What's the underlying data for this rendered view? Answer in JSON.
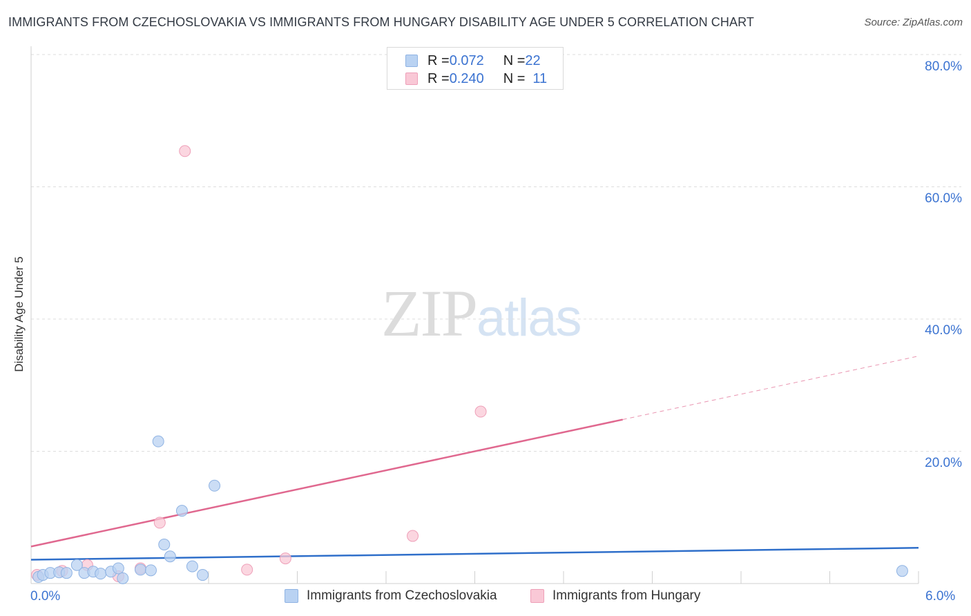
{
  "title": "IMMIGRANTS FROM CZECHOSLOVAKIA VS IMMIGRANTS FROM HUNGARY DISABILITY AGE UNDER 5 CORRELATION CHART",
  "source": "Source: ZipAtlas.com",
  "watermark": {
    "zip": "ZIP",
    "atlas": "atlas"
  },
  "legend": {
    "rows": [
      {
        "r_label": "R = ",
        "r_value": "0.072",
        "n_label": "N = ",
        "n_value": "22"
      },
      {
        "r_label": "R = ",
        "r_value": "0.240",
        "n_label": "N = ",
        "n_value": "11"
      }
    ]
  },
  "colors": {
    "blue_fill": "#b9d2f2",
    "blue_stroke": "#8fb3e3",
    "blue_line": "#2f6fca",
    "pink_fill": "#f9c8d6",
    "pink_stroke": "#ee9fb8",
    "pink_line": "#e0688f",
    "tick_text": "#3b73d1",
    "grid": "#dcdcdc"
  },
  "chart_data": {
    "type": "scatter",
    "title": "IMMIGRANTS FROM CZECHOSLOVAKIA VS IMMIGRANTS FROM HUNGARY DISABILITY AGE UNDER 5 CORRELATION CHART",
    "xlabel": "",
    "ylabel": "Disability Age Under 5",
    "xlim": [
      0,
      6
    ],
    "ylim": [
      0,
      80
    ],
    "x_ticks": [
      "0.0%",
      "6.0%"
    ],
    "y_ticks": [
      "20.0%",
      "40.0%",
      "60.0%",
      "80.0%"
    ],
    "grid": true,
    "legend_position": "top-center",
    "series": [
      {
        "name": "Immigrants from Czechoslovakia",
        "color": "#b9d2f2",
        "points": [
          [
            0.05,
            1.0
          ],
          [
            0.08,
            1.3
          ],
          [
            0.13,
            1.6
          ],
          [
            0.19,
            1.7
          ],
          [
            0.24,
            1.6
          ],
          [
            0.31,
            2.8
          ],
          [
            0.36,
            1.6
          ],
          [
            0.42,
            1.8
          ],
          [
            0.47,
            1.5
          ],
          [
            0.54,
            1.8
          ],
          [
            0.59,
            2.3
          ],
          [
            0.62,
            0.8
          ],
          [
            0.74,
            2.1
          ],
          [
            0.81,
            2.0
          ],
          [
            0.86,
            21.5
          ],
          [
            0.9,
            5.9
          ],
          [
            0.94,
            4.1
          ],
          [
            1.02,
            11.0
          ],
          [
            1.09,
            2.6
          ],
          [
            1.16,
            1.3
          ],
          [
            1.24,
            14.8
          ],
          [
            5.89,
            1.9
          ]
        ],
        "trend": {
          "x": [
            0.0,
            6.0
          ],
          "y": [
            3.6,
            5.4
          ]
        }
      },
      {
        "name": "Immigrants from Hungary",
        "color": "#f9c8d6",
        "points": [
          [
            0.04,
            1.3
          ],
          [
            0.21,
            1.9
          ],
          [
            0.38,
            2.8
          ],
          [
            0.59,
            1.1
          ],
          [
            0.74,
            2.3
          ],
          [
            0.87,
            9.2
          ],
          [
            1.04,
            65.4
          ],
          [
            1.46,
            2.1
          ],
          [
            1.72,
            3.8
          ],
          [
            2.58,
            7.2
          ],
          [
            3.04,
            26.0
          ]
        ],
        "trend": {
          "x": [
            0.0,
            4.0
          ],
          "y": [
            5.6,
            24.8
          ]
        },
        "trend_extension": {
          "x": [
            4.0,
            6.0
          ],
          "y": [
            24.8,
            34.4
          ]
        }
      }
    ]
  }
}
